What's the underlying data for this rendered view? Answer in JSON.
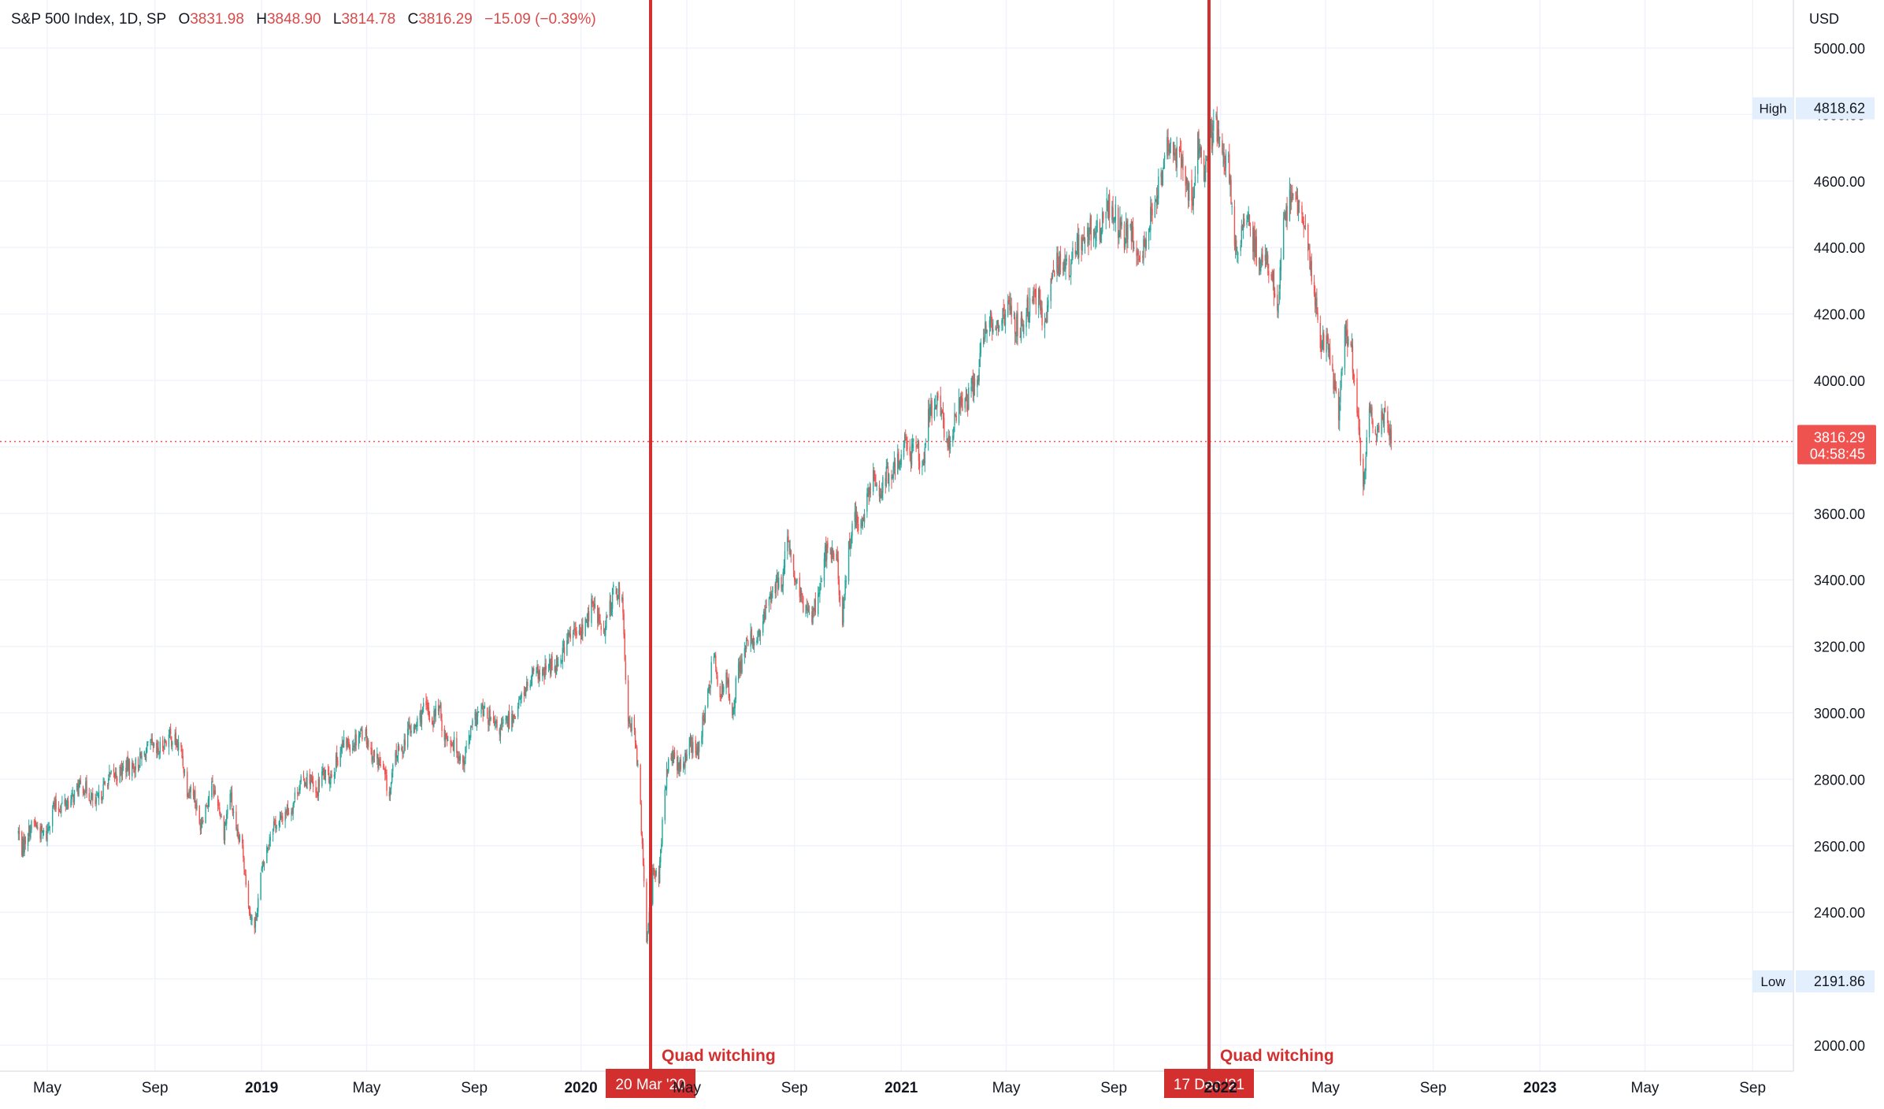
{
  "header": {
    "symbol": "S&P 500 Index, 1D, SP",
    "open_label": "O",
    "open": "3831.98",
    "high_label": "H",
    "high": "3848.90",
    "low_label": "L",
    "low": "3814.78",
    "close_label": "C",
    "close": "3816.29",
    "change": "−15.09 (−0.39%)"
  },
  "price_scale": {
    "currency": "USD",
    "high_label": "High",
    "high_value": "4818.62",
    "low_label": "Low",
    "low_value": "2191.86",
    "last_price": "3816.29",
    "countdown": "04:58:45"
  },
  "markers": [
    {
      "date_label": "20 Mar '20",
      "annotation": "Quad witching"
    },
    {
      "date_label": "17 Dec '21",
      "annotation": "Quad witching"
    }
  ],
  "colors": {
    "up": "#26a69a",
    "down": "#ef5350",
    "marker": "#d32f2f",
    "grid": "#f0f3fa",
    "text": "#131722",
    "scale_badge": "#e3effd"
  },
  "chart_data": {
    "type": "candlestick",
    "title": "S&P 500 Index, 1D, SP",
    "ylabel": "USD",
    "ylim": [
      1900,
      5100
    ],
    "yticks": [
      2000,
      2200,
      2400,
      2600,
      2800,
      3000,
      3200,
      3400,
      3600,
      3800,
      4000,
      4200,
      4400,
      4600,
      4800,
      5000
    ],
    "ytick_labels": [
      "2000.00",
      "2200.00",
      "2400.00",
      "2600.00",
      "2800.00",
      "3000.00",
      "3200.00",
      "3400.00",
      "3600.00",
      "3800.00",
      "4000.00",
      "4200.00",
      "4400.00",
      "4600.00",
      "4800.00",
      "5000.00"
    ],
    "x_ticks": [
      {
        "date": "2018-05-01",
        "label": "May"
      },
      {
        "date": "2018-09-01",
        "label": "Sep"
      },
      {
        "date": "2019-01-01",
        "label": "2019"
      },
      {
        "date": "2019-05-01",
        "label": "May"
      },
      {
        "date": "2019-09-01",
        "label": "Sep"
      },
      {
        "date": "2020-01-01",
        "label": "2020"
      },
      {
        "date": "2020-05-01",
        "label": "May"
      },
      {
        "date": "2020-09-01",
        "label": "Sep"
      },
      {
        "date": "2021-01-01",
        "label": "2021"
      },
      {
        "date": "2021-05-01",
        "label": "May"
      },
      {
        "date": "2021-09-01",
        "label": "Sep"
      },
      {
        "date": "2022-01-01",
        "label": "2022"
      },
      {
        "date": "2022-05-01",
        "label": "May"
      },
      {
        "date": "2022-09-01",
        "label": "Sep"
      },
      {
        "date": "2023-01-01",
        "label": "2023"
      },
      {
        "date": "2023-05-01",
        "label": "May"
      },
      {
        "date": "2023-09-01",
        "label": "Sep"
      }
    ],
    "x_range": [
      "2018-03-29",
      "2023-11-10"
    ],
    "series": [
      {
        "values": [
          [
            "2018-03-29",
            2640
          ],
          [
            "2018-04-02",
            2590
          ],
          [
            "2018-04-09",
            2640
          ],
          [
            "2018-04-16",
            2670
          ],
          [
            "2018-04-23",
            2640
          ],
          [
            "2018-04-30",
            2630
          ],
          [
            "2018-05-07",
            2720
          ],
          [
            "2018-05-14",
            2715
          ],
          [
            "2018-05-21",
            2730
          ],
          [
            "2018-05-28",
            2735
          ],
          [
            "2018-06-04",
            2770
          ],
          [
            "2018-06-11",
            2780
          ],
          [
            "2018-06-18",
            2755
          ],
          [
            "2018-06-25",
            2720
          ],
          [
            "2018-07-02",
            2760
          ],
          [
            "2018-07-09",
            2800
          ],
          [
            "2018-07-16",
            2810
          ],
          [
            "2018-07-23",
            2820
          ],
          [
            "2018-07-30",
            2840
          ],
          [
            "2018-08-06",
            2835
          ],
          [
            "2018-08-13",
            2850
          ],
          [
            "2018-08-20",
            2875
          ],
          [
            "2018-08-27",
            2900
          ],
          [
            "2018-09-03",
            2875
          ],
          [
            "2018-09-10",
            2905
          ],
          [
            "2018-09-17",
            2930
          ],
          [
            "2018-09-24",
            2915
          ],
          [
            "2018-10-01",
            2885
          ],
          [
            "2018-10-08",
            2770
          ],
          [
            "2018-10-15",
            2770
          ],
          [
            "2018-10-22",
            2660
          ],
          [
            "2018-10-29",
            2720
          ],
          [
            "2018-11-05",
            2780
          ],
          [
            "2018-11-12",
            2735
          ],
          [
            "2018-11-19",
            2640
          ],
          [
            "2018-11-26",
            2760
          ],
          [
            "2018-12-03",
            2630
          ],
          [
            "2018-12-10",
            2600
          ],
          [
            "2018-12-17",
            2420
          ],
          [
            "2018-12-24",
            2350
          ],
          [
            "2018-12-31",
            2510
          ],
          [
            "2019-01-07",
            2590
          ],
          [
            "2019-01-14",
            2670
          ],
          [
            "2019-01-21",
            2665
          ],
          [
            "2019-01-28",
            2705
          ],
          [
            "2019-02-04",
            2710
          ],
          [
            "2019-02-11",
            2775
          ],
          [
            "2019-02-18",
            2795
          ],
          [
            "2019-02-25",
            2805
          ],
          [
            "2019-03-04",
            2745
          ],
          [
            "2019-03-11",
            2820
          ],
          [
            "2019-03-18",
            2800
          ],
          [
            "2019-03-25",
            2835
          ],
          [
            "2019-04-01",
            2890
          ],
          [
            "2019-04-08",
            2910
          ],
          [
            "2019-04-15",
            2905
          ],
          [
            "2019-04-22",
            2940
          ],
          [
            "2019-04-29",
            2945
          ],
          [
            "2019-05-06",
            2880
          ],
          [
            "2019-05-13",
            2860
          ],
          [
            "2019-05-20",
            2825
          ],
          [
            "2019-05-27",
            2750
          ],
          [
            "2019-06-03",
            2875
          ],
          [
            "2019-06-10",
            2885
          ],
          [
            "2019-06-17",
            2950
          ],
          [
            "2019-06-24",
            2945
          ],
          [
            "2019-07-01",
            2990
          ],
          [
            "2019-07-08",
            3015
          ],
          [
            "2019-07-15",
            2975
          ],
          [
            "2019-07-22",
            3025
          ],
          [
            "2019-07-29",
            2930
          ],
          [
            "2019-08-05",
            2920
          ],
          [
            "2019-08-12",
            2890
          ],
          [
            "2019-08-19",
            2850
          ],
          [
            "2019-08-26",
            2925
          ],
          [
            "2019-09-02",
            2980
          ],
          [
            "2019-09-09",
            3005
          ],
          [
            "2019-09-16",
            2990
          ],
          [
            "2019-09-23",
            2960
          ],
          [
            "2019-09-30",
            2950
          ],
          [
            "2019-10-07",
            2970
          ],
          [
            "2019-10-14",
            2985
          ],
          [
            "2019-10-21",
            3020
          ],
          [
            "2019-10-28",
            3065
          ],
          [
            "2019-11-04",
            3090
          ],
          [
            "2019-11-11",
            3120
          ],
          [
            "2019-11-18",
            3110
          ],
          [
            "2019-11-25",
            3140
          ],
          [
            "2019-12-02",
            3145
          ],
          [
            "2019-12-09",
            3170
          ],
          [
            "2019-12-16",
            3220
          ],
          [
            "2019-12-23",
            3240
          ],
          [
            "2019-12-30",
            3235
          ],
          [
            "2020-01-06",
            3265
          ],
          [
            "2020-01-13",
            3325
          ],
          [
            "2020-01-20",
            3295
          ],
          [
            "2020-01-27",
            3225
          ],
          [
            "2020-02-03",
            3325
          ],
          [
            "2020-02-10",
            3380
          ],
          [
            "2020-02-17",
            3335
          ],
          [
            "2020-02-24",
            2955
          ],
          [
            "2020-03-02",
            2970
          ],
          [
            "2020-03-09",
            2710
          ],
          [
            "2020-03-16",
            2305
          ],
          [
            "2020-03-23",
            2540
          ],
          [
            "2020-03-30",
            2490
          ],
          [
            "2020-04-06",
            2790
          ],
          [
            "2020-04-13",
            2875
          ],
          [
            "2020-04-20",
            2835
          ],
          [
            "2020-04-27",
            2830
          ],
          [
            "2020-05-04",
            2930
          ],
          [
            "2020-05-11",
            2865
          ],
          [
            "2020-05-18",
            2955
          ],
          [
            "2020-05-25",
            3045
          ],
          [
            "2020-06-01",
            3195
          ],
          [
            "2020-06-08",
            3040
          ],
          [
            "2020-06-15",
            3100
          ],
          [
            "2020-06-22",
            3010
          ],
          [
            "2020-06-29",
            3130
          ],
          [
            "2020-07-06",
            3185
          ],
          [
            "2020-07-13",
            3225
          ],
          [
            "2020-07-20",
            3215
          ],
          [
            "2020-07-27",
            3270
          ],
          [
            "2020-08-03",
            3350
          ],
          [
            "2020-08-10",
            3375
          ],
          [
            "2020-08-17",
            3395
          ],
          [
            "2020-08-24",
            3510
          ],
          [
            "2020-08-31",
            3425
          ],
          [
            "2020-09-07",
            3340
          ],
          [
            "2020-09-14",
            3320
          ],
          [
            "2020-09-21",
            3300
          ],
          [
            "2020-09-28",
            3350
          ],
          [
            "2020-10-05",
            3480
          ],
          [
            "2020-10-12",
            3485
          ],
          [
            "2020-10-19",
            3465
          ],
          [
            "2020-10-26",
            3270
          ],
          [
            "2020-11-02",
            3510
          ],
          [
            "2020-11-09",
            3585
          ],
          [
            "2020-11-16",
            3560
          ],
          [
            "2020-11-23",
            3640
          ],
          [
            "2020-11-30",
            3700
          ],
          [
            "2020-12-07",
            3665
          ],
          [
            "2020-12-14",
            3710
          ],
          [
            "2020-12-21",
            3705
          ],
          [
            "2020-12-28",
            3755
          ],
          [
            "2021-01-04",
            3825
          ],
          [
            "2021-01-11",
            3770
          ],
          [
            "2021-01-18",
            3840
          ],
          [
            "2021-01-25",
            3715
          ],
          [
            "2021-02-01",
            3885
          ],
          [
            "2021-02-08",
            3935
          ],
          [
            "2021-02-15",
            3905
          ],
          [
            "2021-02-22",
            3810
          ],
          [
            "2021-03-01",
            3840
          ],
          [
            "2021-03-08",
            3945
          ],
          [
            "2021-03-15",
            3915
          ],
          [
            "2021-03-22",
            3975
          ],
          [
            "2021-03-29",
            4020
          ],
          [
            "2021-04-05",
            4130
          ],
          [
            "2021-04-12",
            4185
          ],
          [
            "2021-04-19",
            4180
          ],
          [
            "2021-04-26",
            4180
          ],
          [
            "2021-05-03",
            4230
          ],
          [
            "2021-05-10",
            4175
          ],
          [
            "2021-05-17",
            4155
          ],
          [
            "2021-05-24",
            4205
          ],
          [
            "2021-05-31",
            4230
          ],
          [
            "2021-06-07",
            4245
          ],
          [
            "2021-06-14",
            4165
          ],
          [
            "2021-06-21",
            4280
          ],
          [
            "2021-06-28",
            4350
          ],
          [
            "2021-07-05",
            4370
          ],
          [
            "2021-07-12",
            4330
          ],
          [
            "2021-07-19",
            4410
          ],
          [
            "2021-07-26",
            4395
          ],
          [
            "2021-08-02",
            4435
          ],
          [
            "2021-08-09",
            4470
          ],
          [
            "2021-08-16",
            4440
          ],
          [
            "2021-08-23",
            4510
          ],
          [
            "2021-08-30",
            4535
          ],
          [
            "2021-09-06",
            4460
          ],
          [
            "2021-09-13",
            4430
          ],
          [
            "2021-09-20",
            4455
          ],
          [
            "2021-09-27",
            4355
          ],
          [
            "2021-10-04",
            4390
          ],
          [
            "2021-10-11",
            4470
          ],
          [
            "2021-10-18",
            4545
          ],
          [
            "2021-10-25",
            4605
          ],
          [
            "2021-11-01",
            4695
          ],
          [
            "2021-11-08",
            4680
          ],
          [
            "2021-11-15",
            4700
          ],
          [
            "2021-11-22",
            4595
          ],
          [
            "2021-11-29",
            4540
          ],
          [
            "2021-12-06",
            4710
          ],
          [
            "2021-12-13",
            4620
          ],
          [
            "2021-12-20",
            4725
          ],
          [
            "2021-12-27",
            4765
          ],
          [
            "2022-01-03",
            4675
          ],
          [
            "2022-01-10",
            4660
          ],
          [
            "2022-01-17",
            4395
          ],
          [
            "2022-01-24",
            4430
          ],
          [
            "2022-01-31",
            4500
          ],
          [
            "2022-02-07",
            4420
          ],
          [
            "2022-02-14",
            4350
          ],
          [
            "2022-02-21",
            4385
          ],
          [
            "2022-02-28",
            4330
          ],
          [
            "2022-03-07",
            4205
          ],
          [
            "2022-03-14",
            4465
          ],
          [
            "2022-03-21",
            4545
          ],
          [
            "2022-03-28",
            4545
          ],
          [
            "2022-04-04",
            4490
          ],
          [
            "2022-04-11",
            4390
          ],
          [
            "2022-04-18",
            4270
          ],
          [
            "2022-04-25",
            4130
          ],
          [
            "2022-05-02",
            4120
          ],
          [
            "2022-05-09",
            4025
          ],
          [
            "2022-05-16",
            3900
          ],
          [
            "2022-05-23",
            4160
          ],
          [
            "2022-05-30",
            4105
          ],
          [
            "2022-06-06",
            3900
          ],
          [
            "2022-06-13",
            3675
          ],
          [
            "2022-06-20",
            3910
          ],
          [
            "2022-06-27",
            3825
          ],
          [
            "2022-07-04",
            3900
          ],
          [
            "2022-07-11",
            3865
          ],
          [
            "2022-07-18",
            3815
          ]
        ]
      }
    ]
  }
}
